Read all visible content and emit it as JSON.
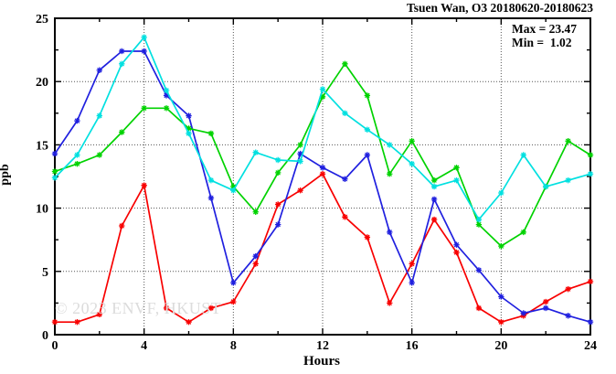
{
  "chart_data": {
    "type": "line",
    "title": "Tsuen Wan, O3 20180620-20180623",
    "xlabel": "Hours",
    "ylabel": "ppb",
    "xlim": [
      0,
      24
    ],
    "ylim": [
      0,
      25
    ],
    "xticks": [
      0,
      4,
      8,
      12,
      16,
      20,
      24
    ],
    "yticks": [
      0,
      5,
      10,
      15,
      20,
      25
    ],
    "x_minor_step": 2,
    "y_minor_step": 2.5,
    "grid": true,
    "legend_position": "none",
    "annotation": {
      "max": "Max = 23.47",
      "min": "Min =  1.02"
    },
    "watermark": "© 2023 ENVF, HKUST",
    "x": [
      0,
      1,
      2,
      3,
      4,
      5,
      6,
      7,
      8,
      9,
      10,
      11,
      12,
      13,
      14,
      15,
      16,
      17,
      18,
      19,
      20,
      21,
      22,
      23,
      24
    ],
    "series": [
      {
        "name": "series-red",
        "color": "#f80000",
        "values": [
          1.0,
          1.0,
          1.6,
          8.6,
          11.8,
          2.1,
          1.0,
          2.1,
          2.6,
          5.6,
          10.3,
          11.4,
          12.7,
          9.3,
          7.7,
          2.5,
          5.6,
          9.1,
          6.5,
          2.1,
          1.0,
          1.5,
          2.6,
          3.6,
          4.2
        ]
      },
      {
        "name": "series-blue",
        "color": "#2020df",
        "values": [
          14.3,
          16.9,
          20.9,
          22.4,
          22.4,
          18.9,
          17.3,
          10.8,
          4.1,
          6.2,
          8.7,
          14.3,
          13.2,
          12.3,
          14.2,
          8.1,
          4.1,
          10.7,
          7.1,
          5.1,
          3.0,
          1.7,
          2.1,
          1.5,
          1.0
        ]
      },
      {
        "name": "series-green",
        "color": "#00d200",
        "values": [
          12.9,
          13.5,
          14.2,
          16.0,
          17.9,
          17.9,
          16.3,
          15.9,
          11.7,
          9.7,
          12.8,
          15.0,
          18.8,
          21.4,
          18.9,
          12.7,
          15.3,
          12.2,
          13.2,
          8.7,
          7.0,
          8.1,
          11.7,
          15.3,
          14.2
        ]
      },
      {
        "name": "series-cyan",
        "color": "#00e0e0",
        "values": [
          12.4,
          14.2,
          17.3,
          21.4,
          23.5,
          19.3,
          15.9,
          12.2,
          11.4,
          14.4,
          13.8,
          13.7,
          19.4,
          17.5,
          16.2,
          15.0,
          13.5,
          11.7,
          12.2,
          9.1,
          11.2,
          14.2,
          11.7,
          12.2,
          12.7
        ]
      }
    ]
  }
}
